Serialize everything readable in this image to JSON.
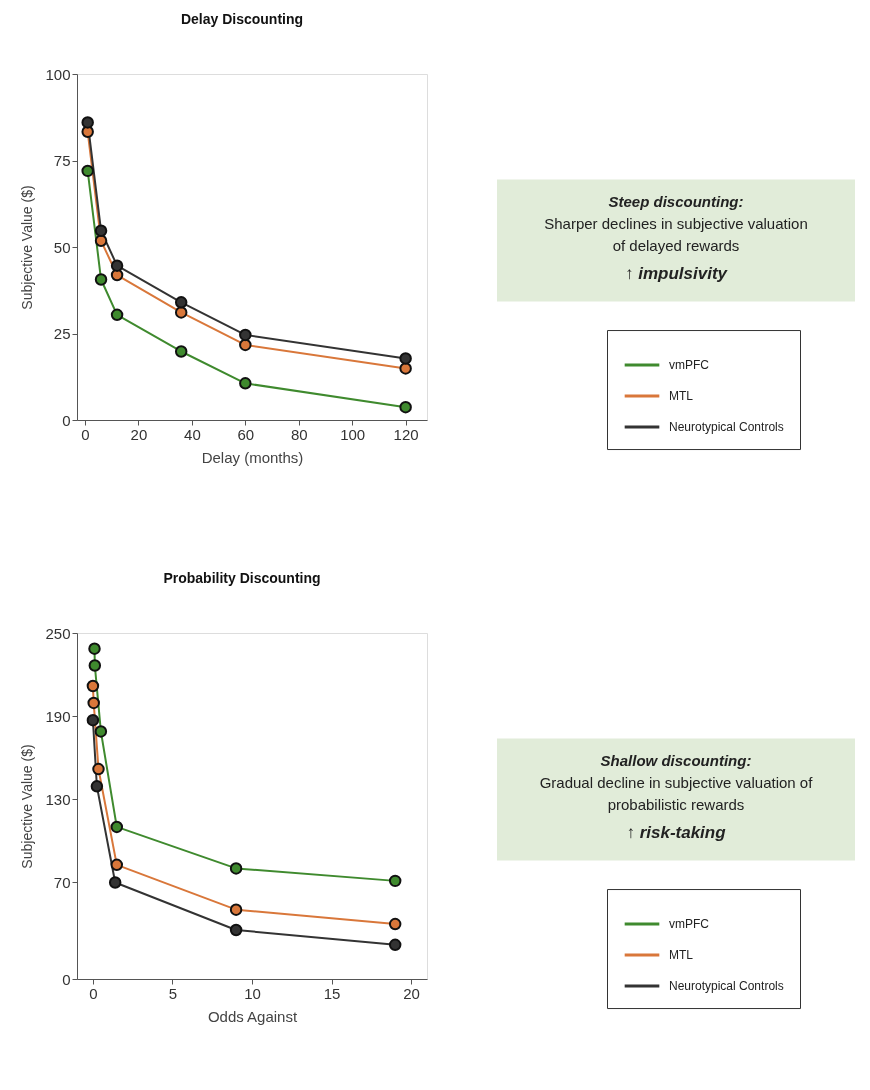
{
  "chart_data": [
    {
      "type": "line",
      "title": "Delay Discounting",
      "xlabel": "Delay (months)",
      "ylabel": "Subjective Value ($)",
      "xlim": [
        -3,
        128
      ],
      "xticks": [
        0,
        20,
        40,
        60,
        80,
        100,
        120
      ],
      "ylim": [
        0,
        100
      ],
      "yticks": [
        0,
        25,
        50,
        75,
        100
      ],
      "grid": false,
      "legend": "right",
      "marker": "circle",
      "line_style": "solid",
      "series": [
        {
          "name": "vmPFC",
          "color": "#3f8a2e",
          "x": [
            1,
            6,
            12,
            36,
            60,
            120
          ],
          "values": [
            72,
            40.6,
            30.4,
            19.8,
            10.6,
            3.7
          ]
        },
        {
          "name": "MTL",
          "color": "#d9773a",
          "x": [
            1,
            6,
            12,
            36,
            60,
            120
          ],
          "values": [
            83.3,
            51.8,
            41.9,
            31.1,
            21.7,
            14.9
          ]
        },
        {
          "name": "Neurotypical Controls",
          "color": "#333333",
          "x": [
            1,
            6,
            12,
            36,
            60,
            120
          ],
          "values": [
            86,
            54.7,
            44.6,
            34,
            24.6,
            17.8
          ]
        }
      ],
      "annotations": [
        "Steep discounting:",
        "Sharper declines in subjective valuation",
        "of delayed rewards",
        "↑ impulsivity"
      ]
    },
    {
      "type": "line",
      "title": "Probability Discounting",
      "xlabel": "Odds Against",
      "ylabel": "Subjective Value ($)",
      "xlim": [
        -1,
        21
      ],
      "xticks": [
        0,
        5,
        10,
        15,
        20
      ],
      "ylim": [
        0,
        250
      ],
      "yticks": [
        0,
        70,
        130,
        190,
        250
      ],
      "grid": false,
      "legend": "right",
      "marker": "circle",
      "line_style": "solid",
      "series": [
        {
          "name": "vmPFC",
          "color": "#3f8a2e",
          "x": [
            0.1,
            0.12,
            0.5,
            1.5,
            9,
            19
          ],
          "values": [
            238.7,
            226.5,
            178.9,
            109.9,
            79.9,
            70.9
          ]
        },
        {
          "name": "MTL",
          "color": "#d9773a",
          "x": [
            0.0,
            0.05,
            0.35,
            1.5,
            9,
            19
          ],
          "values": [
            211.7,
            199.5,
            151.7,
            82.5,
            50.1,
            39.7
          ]
        },
        {
          "name": "Neurotypical Controls",
          "color": "#333333",
          "x": [
            0.0,
            0.25,
            1.4,
            9,
            19
          ],
          "values": [
            187,
            139.2,
            69.7,
            35.4,
            24.7
          ]
        }
      ],
      "annotations": [
        "Shallow discounting:",
        "Gradual decline in subjective valuation of",
        "probabilistic rewards",
        "↑ risk-taking"
      ]
    }
  ]
}
